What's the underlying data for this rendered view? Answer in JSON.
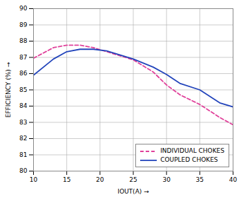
{
  "chart_data": {
    "type": "line",
    "xlabel": "IOUT(A)",
    "ylabel": "EFFICIENCY (%)",
    "xlim": [
      10,
      40
    ],
    "ylim": [
      80,
      90
    ],
    "xticks": [
      10,
      15,
      20,
      25,
      30,
      35,
      40
    ],
    "yticks": [
      80,
      81,
      82,
      83,
      84,
      85,
      86,
      87,
      88,
      89,
      90
    ],
    "grid": true,
    "legend": "lower right",
    "series": [
      {
        "name": "INDIVIDUAL CHOKES",
        "color": "#e0409a",
        "line_style": "dashed",
        "x": [
          10,
          13,
          15,
          17,
          19,
          21,
          25,
          28,
          30,
          32,
          35,
          38,
          40
        ],
        "values": [
          86.95,
          87.6,
          87.75,
          87.75,
          87.6,
          87.35,
          86.85,
          86.1,
          85.3,
          84.7,
          84.1,
          83.3,
          82.85
        ]
      },
      {
        "name": "COUPLED CHOKES",
        "color": "#2244bb",
        "line_style": "solid",
        "x": [
          10,
          13,
          15,
          17,
          19,
          21,
          25,
          28,
          30,
          32,
          35,
          38,
          40
        ],
        "values": [
          85.9,
          86.9,
          87.35,
          87.5,
          87.5,
          87.4,
          86.9,
          86.4,
          85.95,
          85.4,
          85.0,
          84.2,
          83.95
        ]
      }
    ]
  }
}
